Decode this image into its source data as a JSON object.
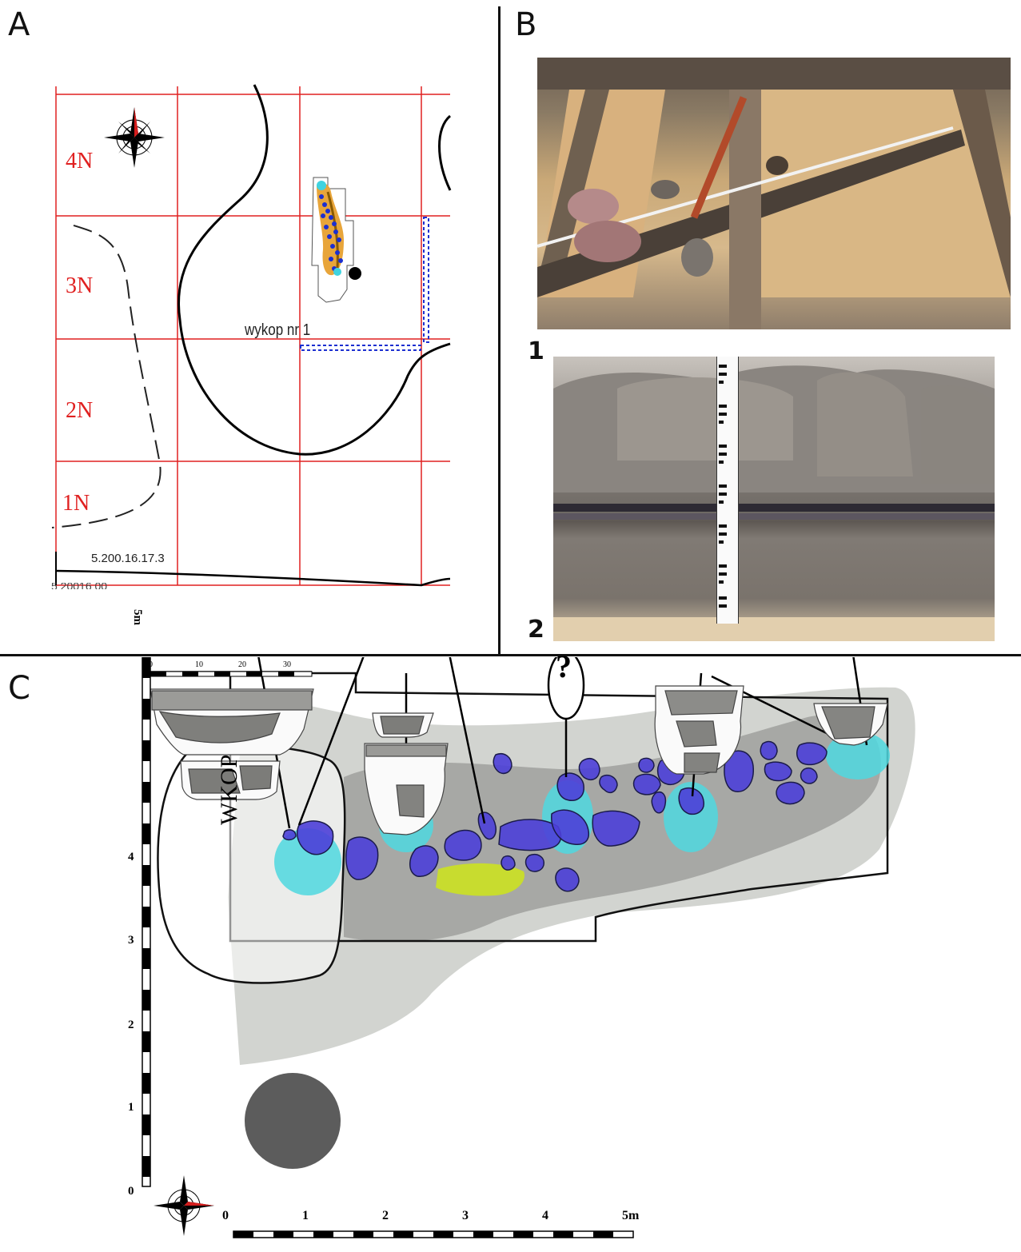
{
  "panels": {
    "a": {
      "label": "A"
    },
    "b": {
      "label": "B"
    },
    "c": {
      "label": "C"
    }
  },
  "map": {
    "grid_rows": [
      "4N",
      "3N",
      "2N",
      "1N"
    ],
    "trench_label": "wykop nr 1",
    "reference_code": "5.200.16.17.3",
    "bottom_code_partial": "5 20016 00"
  },
  "photos": {
    "photo1_label": "1",
    "photo2_label": "2"
  },
  "plan": {
    "wkop_label": "WKOP",
    "question_mark": "?",
    "vertical_scale": {
      "unit_label": "5m",
      "ticks": [
        "0",
        "1",
        "2",
        "3",
        "4"
      ]
    },
    "horizontal_scale": {
      "ticks": [
        "0",
        "1",
        "2",
        "3",
        "4"
      ],
      "unit_label": "5m"
    },
    "ruler": {
      "ticks": [
        "0",
        "10",
        "20",
        "30"
      ]
    },
    "compass_letters": [
      "N",
      "E",
      "S",
      "W"
    ]
  },
  "colors": {
    "grid_red": "#e02020",
    "stone_blue": "#4a3fd6",
    "pottery_cyan": "#4fd9e0",
    "charcoal_dark": "#555555",
    "yellow_green": "#c6d835"
  }
}
